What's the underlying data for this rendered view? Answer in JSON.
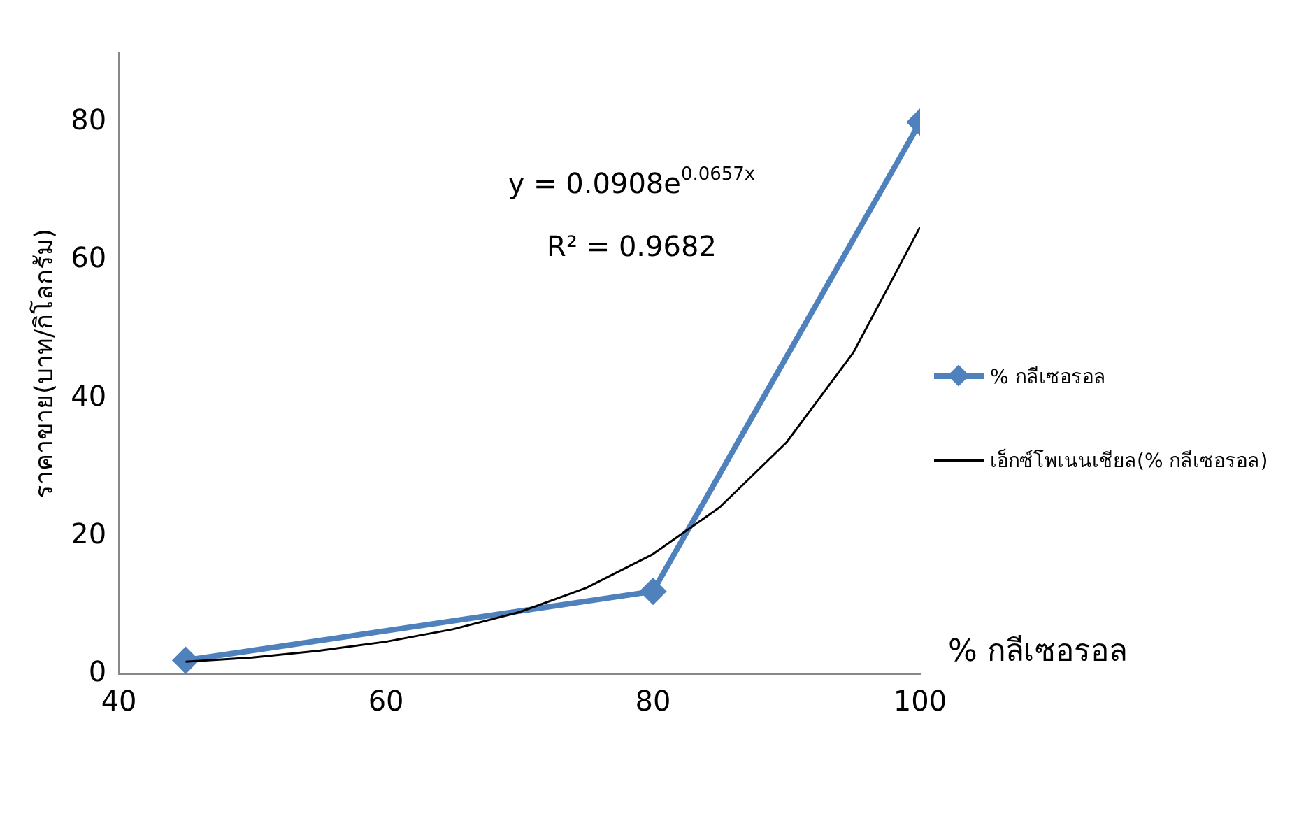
{
  "chart_data": {
    "type": "line",
    "xlabel": "% กลีเซอรอล",
    "ylabel": "ราคาขาย(บาท/กิโลกรัม)",
    "xlim": [
      40,
      100
    ],
    "xticks": [
      40,
      60,
      80,
      100
    ],
    "ylim": [
      0,
      90
    ],
    "yticks": [
      0,
      20,
      40,
      60,
      80
    ],
    "grid": false,
    "legend": "right",
    "series": [
      {
        "name": "% กลีเซอรอล",
        "color": "#4f81bd",
        "x": [
          45,
          80,
          100
        ],
        "values": [
          2,
          12,
          80
        ],
        "marker": "diamond"
      },
      {
        "name": "เอ็กซ์โพเนนเชียล(% กลีเซอรอล)",
        "type": "line",
        "color": "#000000",
        "marker": "none",
        "x": [
          45,
          50,
          55,
          60,
          65,
          70,
          75,
          80,
          85,
          90,
          95,
          100
        ],
        "values": [
          1.8,
          2.4,
          3.4,
          4.7,
          6.5,
          9,
          12.5,
          17.4,
          24.2,
          33.6,
          46.6,
          64.8
        ]
      }
    ],
    "annotations": [
      "y = 0.0908e$^{0.0657x}$",
      "R² = 0.9682"
    ]
  }
}
